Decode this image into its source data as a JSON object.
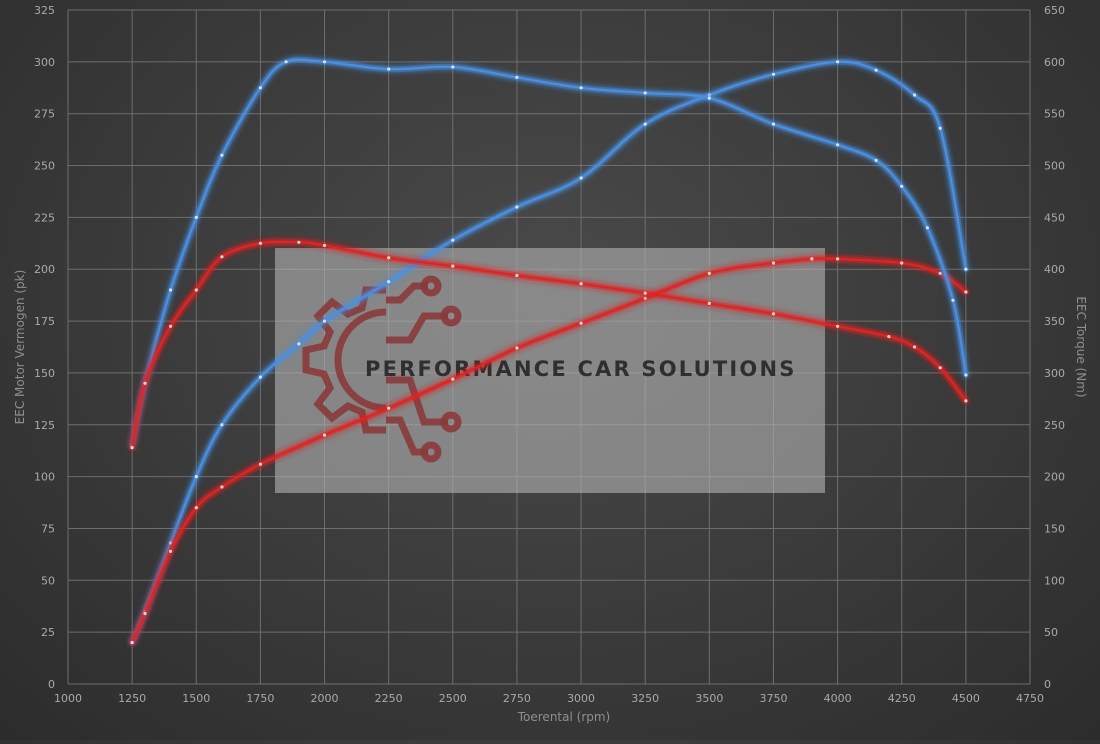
{
  "chart_data": {
    "type": "line",
    "xlabel": "Toerental (rpm)",
    "ylabel_left": "EEC Motor Vermogen (pk)",
    "ylabel_right": "EEC Torque (Nm)",
    "xlim": [
      1000,
      4750
    ],
    "ylim_left": [
      0,
      325
    ],
    "ylim_right": [
      0,
      650
    ],
    "x_ticks": [
      1000,
      1250,
      1500,
      1750,
      2000,
      2250,
      2500,
      2750,
      3000,
      3250,
      3500,
      3750,
      4000,
      4250,
      4500,
      4750
    ],
    "y_ticks_left": [
      0,
      25,
      50,
      75,
      100,
      125,
      150,
      175,
      200,
      225,
      250,
      275,
      300,
      325
    ],
    "y_ticks_right": [
      0,
      50,
      100,
      150,
      200,
      250,
      300,
      350,
      400,
      450,
      500,
      550,
      600,
      650
    ],
    "grid": true,
    "colors": {
      "tuned": "#4a90e2",
      "stock": "#e02424"
    },
    "series": [
      {
        "axis": "left",
        "color": "#4a90e2",
        "x": [
          1250,
          1300,
          1400,
          1500,
          1600,
          1750,
          1900,
          2000,
          2250,
          2500,
          2750,
          3000,
          3250,
          3500,
          3750,
          4000,
          4150,
          4300,
          4400,
          4500
        ],
        "y": [
          20,
          35,
          68,
          100,
          125,
          148,
          164,
          175,
          194,
          214,
          230,
          244,
          270,
          284,
          294,
          300,
          296,
          284,
          268,
          200
        ]
      },
      {
        "axis": "left",
        "color": "#e02424",
        "x": [
          1250,
          1300,
          1400,
          1500,
          1600,
          1750,
          2000,
          2250,
          2500,
          2750,
          3000,
          3250,
          3500,
          3750,
          3900,
          4000,
          4250,
          4400,
          4500
        ],
        "y": [
          20,
          34,
          64,
          85,
          95,
          106,
          120,
          133,
          147,
          162,
          174,
          186,
          198,
          203,
          205,
          205,
          203,
          198,
          189
        ]
      },
      {
        "axis": "right",
        "color": "#4a90e2",
        "x": [
          1250,
          1300,
          1400,
          1500,
          1600,
          1750,
          1850,
          2000,
          2250,
          2500,
          2750,
          3000,
          3250,
          3500,
          3750,
          4000,
          4150,
          4250,
          4350,
          4450,
          4500
        ],
        "y": [
          230,
          290,
          380,
          450,
          510,
          575,
          600,
          600,
          593,
          595,
          585,
          575,
          570,
          565,
          540,
          520,
          505,
          480,
          440,
          370,
          298
        ]
      },
      {
        "axis": "right",
        "color": "#e02424",
        "x": [
          1250,
          1300,
          1400,
          1500,
          1600,
          1750,
          1900,
          2000,
          2250,
          2500,
          2750,
          3000,
          3250,
          3500,
          3750,
          4000,
          4200,
          4300,
          4400,
          4500
        ],
        "y": [
          228,
          290,
          345,
          380,
          412,
          425,
          426,
          423,
          411,
          403,
          394,
          386,
          377,
          367,
          357,
          345,
          335,
          325,
          305,
          273
        ]
      }
    ]
  },
  "watermark": {
    "text": "PERFORMANCE CAR SOLUTIONS"
  }
}
